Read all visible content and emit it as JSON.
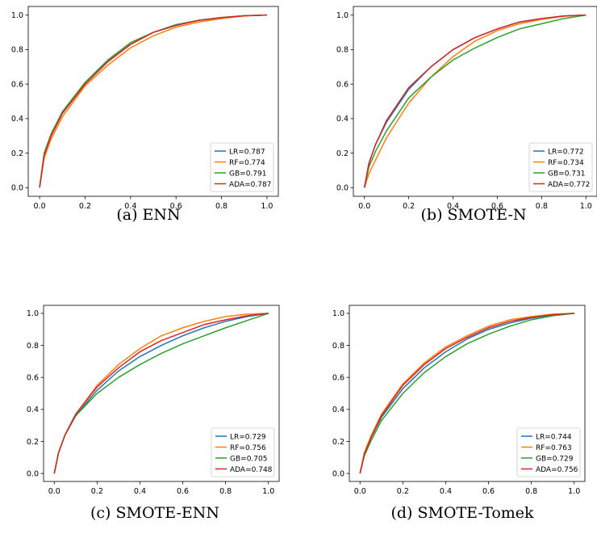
{
  "colors": {
    "LR": "#1f77b4",
    "RF": "#ff7f0e",
    "GB": "#2ca02c",
    "ADA": "#d62728"
  },
  "chart_data": [
    {
      "type": "line",
      "caption": "(a) ENN",
      "xlim": [
        0.0,
        1.0
      ],
      "ylim": [
        0.0,
        1.0
      ],
      "xticks": [
        "0.0",
        "0.2",
        "0.4",
        "0.6",
        "0.8",
        "1.0"
      ],
      "yticks": [
        "0.0",
        "0.2",
        "0.4",
        "0.6",
        "0.8",
        "1.0"
      ],
      "legend_position": "lower-right",
      "series": [
        {
          "name": "LR=0.787",
          "color": "#1f77b4",
          "x": [
            0,
            0.02,
            0.05,
            0.1,
            0.2,
            0.3,
            0.4,
            0.5,
            0.6,
            0.7,
            0.8,
            0.9,
            1.0
          ],
          "y": [
            0,
            0.19,
            0.3,
            0.43,
            0.6,
            0.73,
            0.83,
            0.9,
            0.94,
            0.97,
            0.985,
            0.996,
            1.0
          ]
        },
        {
          "name": "RF=0.774",
          "color": "#ff7f0e",
          "x": [
            0,
            0.02,
            0.05,
            0.1,
            0.2,
            0.3,
            0.4,
            0.5,
            0.6,
            0.7,
            0.8,
            0.9,
            1.0
          ],
          "y": [
            0,
            0.17,
            0.28,
            0.41,
            0.59,
            0.71,
            0.81,
            0.88,
            0.93,
            0.96,
            0.98,
            0.995,
            1.0
          ]
        },
        {
          "name": "GB=0.791",
          "color": "#2ca02c",
          "x": [
            0,
            0.02,
            0.05,
            0.1,
            0.2,
            0.3,
            0.4,
            0.5,
            0.6,
            0.7,
            0.8,
            0.9,
            1.0
          ],
          "y": [
            0,
            0.2,
            0.31,
            0.44,
            0.61,
            0.74,
            0.84,
            0.9,
            0.945,
            0.97,
            0.986,
            0.996,
            1.0
          ]
        },
        {
          "name": "ADA=0.787",
          "color": "#d62728",
          "x": [
            0,
            0.02,
            0.05,
            0.1,
            0.2,
            0.3,
            0.4,
            0.5,
            0.6,
            0.7,
            0.8,
            0.9,
            1.0
          ],
          "y": [
            0,
            0.19,
            0.3,
            0.43,
            0.6,
            0.73,
            0.83,
            0.9,
            0.94,
            0.97,
            0.985,
            0.996,
            1.0
          ]
        }
      ]
    },
    {
      "type": "line",
      "caption": "(b) SMOTE-N",
      "xlim": [
        0.0,
        1.0
      ],
      "ylim": [
        0.0,
        1.0
      ],
      "xticks": [
        "0.0",
        "0.2",
        "0.4",
        "0.6",
        "0.8",
        "1.0"
      ],
      "yticks": [
        "0.0",
        "0.2",
        "0.4",
        "0.6",
        "0.8",
        "1.0"
      ],
      "legend_position": "lower-right",
      "series": [
        {
          "name": "LR=0.772",
          "color": "#1f77b4",
          "x": [
            0,
            0.02,
            0.05,
            0.1,
            0.2,
            0.3,
            0.4,
            0.5,
            0.6,
            0.7,
            0.8,
            0.9,
            1.0
          ],
          "y": [
            0,
            0.14,
            0.25,
            0.38,
            0.57,
            0.7,
            0.8,
            0.87,
            0.92,
            0.96,
            0.98,
            0.995,
            1.0
          ]
        },
        {
          "name": "RF=0.734",
          "color": "#ff7f0e",
          "x": [
            0,
            0.02,
            0.05,
            0.1,
            0.2,
            0.3,
            0.4,
            0.5,
            0.6,
            0.7,
            0.8,
            0.9,
            1.0
          ],
          "y": [
            0,
            0.08,
            0.16,
            0.29,
            0.49,
            0.64,
            0.76,
            0.85,
            0.91,
            0.95,
            0.975,
            0.993,
            1.0
          ]
        },
        {
          "name": "GB=0.731",
          "color": "#2ca02c",
          "x": [
            0,
            0.02,
            0.05,
            0.1,
            0.2,
            0.3,
            0.4,
            0.5,
            0.6,
            0.7,
            0.8,
            0.9,
            1.0
          ],
          "y": [
            0,
            0.12,
            0.21,
            0.33,
            0.52,
            0.64,
            0.74,
            0.81,
            0.87,
            0.92,
            0.95,
            0.98,
            1.0
          ]
        },
        {
          "name": "ADA=0.772",
          "color": "#d62728",
          "x": [
            0,
            0.02,
            0.05,
            0.1,
            0.2,
            0.3,
            0.4,
            0.5,
            0.6,
            0.7,
            0.8,
            0.9,
            1.0
          ],
          "y": [
            0,
            0.14,
            0.25,
            0.39,
            0.58,
            0.7,
            0.8,
            0.87,
            0.92,
            0.96,
            0.98,
            0.995,
            1.0
          ]
        }
      ]
    },
    {
      "type": "line",
      "caption": "(c) SMOTE-ENN",
      "xlim": [
        0.0,
        1.0
      ],
      "ylim": [
        0.0,
        1.0
      ],
      "xticks": [
        "0.0",
        "0.2",
        "0.4",
        "0.6",
        "0.8",
        "1.0"
      ],
      "yticks": [
        "0.0",
        "0.2",
        "0.4",
        "0.6",
        "0.8",
        "1.0"
      ],
      "legend_position": "lower-right",
      "series": [
        {
          "name": "LR=0.729",
          "color": "#1f77b4",
          "x": [
            0,
            0.02,
            0.05,
            0.1,
            0.2,
            0.3,
            0.4,
            0.5,
            0.6,
            0.7,
            0.8,
            0.9,
            1.0
          ],
          "y": [
            0,
            0.13,
            0.24,
            0.36,
            0.52,
            0.64,
            0.73,
            0.8,
            0.86,
            0.91,
            0.95,
            0.98,
            1.0
          ]
        },
        {
          "name": "RF=0.756",
          "color": "#ff7f0e",
          "x": [
            0,
            0.02,
            0.05,
            0.1,
            0.2,
            0.3,
            0.4,
            0.5,
            0.6,
            0.7,
            0.8,
            0.9,
            1.0
          ],
          "y": [
            0,
            0.13,
            0.24,
            0.37,
            0.55,
            0.68,
            0.78,
            0.86,
            0.91,
            0.95,
            0.98,
            0.995,
            1.0
          ]
        },
        {
          "name": "GB=0.705",
          "color": "#2ca02c",
          "x": [
            0,
            0.02,
            0.05,
            0.1,
            0.2,
            0.3,
            0.4,
            0.5,
            0.6,
            0.7,
            0.8,
            0.9,
            1.0
          ],
          "y": [
            0,
            0.13,
            0.24,
            0.36,
            0.5,
            0.6,
            0.68,
            0.75,
            0.81,
            0.86,
            0.91,
            0.955,
            1.0
          ]
        },
        {
          "name": "ADA=0.748",
          "color": "#d62728",
          "x": [
            0,
            0.02,
            0.05,
            0.1,
            0.2,
            0.3,
            0.4,
            0.5,
            0.6,
            0.7,
            0.8,
            0.9,
            1.0
          ],
          "y": [
            0,
            0.13,
            0.24,
            0.37,
            0.54,
            0.66,
            0.76,
            0.83,
            0.88,
            0.93,
            0.96,
            0.985,
            1.0
          ]
        }
      ]
    },
    {
      "type": "line",
      "caption": "(d) SMOTE-Tomek",
      "xlim": [
        0.0,
        1.0
      ],
      "ylim": [
        0.0,
        1.0
      ],
      "xticks": [
        "0.0",
        "0.2",
        "0.4",
        "0.6",
        "0.8",
        "1.0"
      ],
      "yticks": [
        "0.0",
        "0.2",
        "0.4",
        "0.6",
        "0.8",
        "1.0"
      ],
      "legend_position": "lower-right",
      "series": [
        {
          "name": "LR=0.744",
          "color": "#1f77b4",
          "x": [
            0,
            0.02,
            0.05,
            0.1,
            0.2,
            0.3,
            0.4,
            0.5,
            0.6,
            0.7,
            0.8,
            0.9,
            1.0
          ],
          "y": [
            0,
            0.12,
            0.22,
            0.35,
            0.53,
            0.66,
            0.76,
            0.84,
            0.9,
            0.94,
            0.97,
            0.99,
            1.0
          ]
        },
        {
          "name": "RF=0.763",
          "color": "#ff7f0e",
          "x": [
            0,
            0.02,
            0.05,
            0.1,
            0.2,
            0.3,
            0.4,
            0.5,
            0.6,
            0.7,
            0.8,
            0.9,
            1.0
          ],
          "y": [
            0,
            0.13,
            0.23,
            0.37,
            0.56,
            0.69,
            0.79,
            0.86,
            0.92,
            0.96,
            0.98,
            0.995,
            1.0
          ]
        },
        {
          "name": "GB=0.729",
          "color": "#2ca02c",
          "x": [
            0,
            0.02,
            0.05,
            0.1,
            0.2,
            0.3,
            0.4,
            0.5,
            0.6,
            0.7,
            0.8,
            0.9,
            1.0
          ],
          "y": [
            0,
            0.11,
            0.2,
            0.33,
            0.5,
            0.63,
            0.73,
            0.81,
            0.87,
            0.92,
            0.96,
            0.985,
            1.0
          ]
        },
        {
          "name": "ADA=0.756",
          "color": "#d62728",
          "x": [
            0,
            0.02,
            0.05,
            0.1,
            0.2,
            0.3,
            0.4,
            0.5,
            0.6,
            0.7,
            0.8,
            0.9,
            1.0
          ],
          "y": [
            0,
            0.12,
            0.22,
            0.36,
            0.55,
            0.68,
            0.78,
            0.85,
            0.91,
            0.95,
            0.975,
            0.992,
            1.0
          ]
        }
      ]
    }
  ]
}
